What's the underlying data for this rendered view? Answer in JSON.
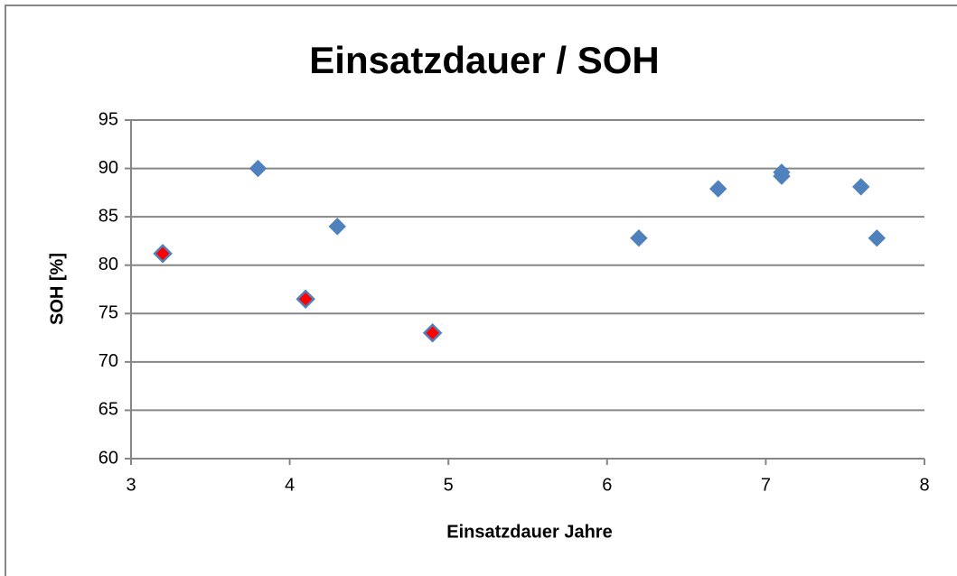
{
  "chart_data": {
    "type": "scatter",
    "title": "Einsatzdauer / SOH",
    "x_label": "Einsatzdauer Jahre",
    "y_label": "SOH [%]",
    "series": [
      {
        "color": "#4f81bd",
        "x": [
          3.8,
          4.3,
          6.2,
          6.7,
          7.1,
          7.1,
          7.6,
          7.7
        ],
        "values": [
          90,
          84,
          82.8,
          87.9,
          89.6,
          89.2,
          88.1,
          82.8
        ]
      },
      {
        "color": "#ff0000",
        "edge_color": "#4f81bd",
        "x": [
          3.2,
          4.1,
          4.9
        ],
        "values": [
          81.2,
          76.5,
          73
        ]
      }
    ],
    "xlim": [
      3,
      8
    ],
    "xticks": [
      3,
      4,
      5,
      6,
      7,
      8
    ],
    "ylim": [
      60,
      95
    ],
    "yticks": [
      60,
      65,
      70,
      75,
      80,
      85,
      90,
      95
    ],
    "grid": true
  }
}
